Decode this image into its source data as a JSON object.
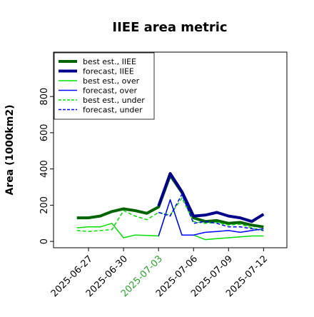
{
  "chart_data": {
    "type": "line",
    "title": "IIEE area metric",
    "ylabel": "Area (1000km2)",
    "x": [
      "2025-06-26",
      "2025-06-27",
      "2025-06-28",
      "2025-06-29",
      "2025-06-30",
      "2025-07-01",
      "2025-07-02",
      "2025-07-03",
      "2025-07-04",
      "2025-07-05",
      "2025-07-06",
      "2025-07-07",
      "2025-07-08",
      "2025-07-09",
      "2025-07-10",
      "2025-07-11",
      "2025-07-12"
    ],
    "xlim": [
      "2025-06-24",
      "2025-07-14"
    ],
    "xticks": [
      "2025-06-27",
      "2025-06-30",
      "2025-07-03",
      "2025-07-06",
      "2025-07-09",
      "2025-07-12"
    ],
    "xtick_colors": [
      "#000000",
      "#000000",
      "#2ca02c",
      "#000000",
      "#000000",
      "#000000"
    ],
    "ylim": [
      -35,
      1045
    ],
    "yticks": [
      0,
      200,
      400,
      600,
      800
    ],
    "legend": "upper left",
    "series": [
      {
        "name": "best est., IIEE",
        "color": "#006400",
        "width": 4,
        "dash": false,
        "values": [
          130,
          130,
          140,
          165,
          180,
          170,
          155,
          190,
          365,
          270,
          130,
          110,
          115,
          100,
          105,
          90,
          80
        ]
      },
      {
        "name": "forecast, IIEE",
        "color": "#00008b",
        "width": 4,
        "dash": false,
        "values": [
          null,
          null,
          null,
          null,
          null,
          null,
          null,
          195,
          375,
          275,
          140,
          145,
          160,
          140,
          130,
          110,
          150
        ]
      },
      {
        "name": "best est., over",
        "color": "#00e000",
        "width": 1.5,
        "dash": false,
        "values": [
          75,
          80,
          80,
          100,
          20,
          35,
          33,
          30,
          230,
          35,
          35,
          10,
          15,
          20,
          25,
          30,
          30
        ]
      },
      {
        "name": "forecast, over",
        "color": "#0000ff",
        "width": 1.5,
        "dash": false,
        "values": [
          null,
          null,
          null,
          null,
          null,
          null,
          null,
          30,
          230,
          35,
          35,
          50,
          55,
          60,
          50,
          60,
          70
        ]
      },
      {
        "name": "best est., under",
        "color": "#00e000",
        "width": 1.5,
        "dash": true,
        "values": [
          60,
          55,
          60,
          65,
          170,
          140,
          120,
          160,
          145,
          240,
          110,
          100,
          105,
          90,
          95,
          75,
          60
        ]
      },
      {
        "name": "forecast, under",
        "color": "#0000ff",
        "width": 1.5,
        "dash": true,
        "values": [
          null,
          null,
          null,
          null,
          null,
          null,
          null,
          160,
          140,
          260,
          100,
          110,
          100,
          80,
          80,
          70,
          60
        ]
      }
    ]
  }
}
